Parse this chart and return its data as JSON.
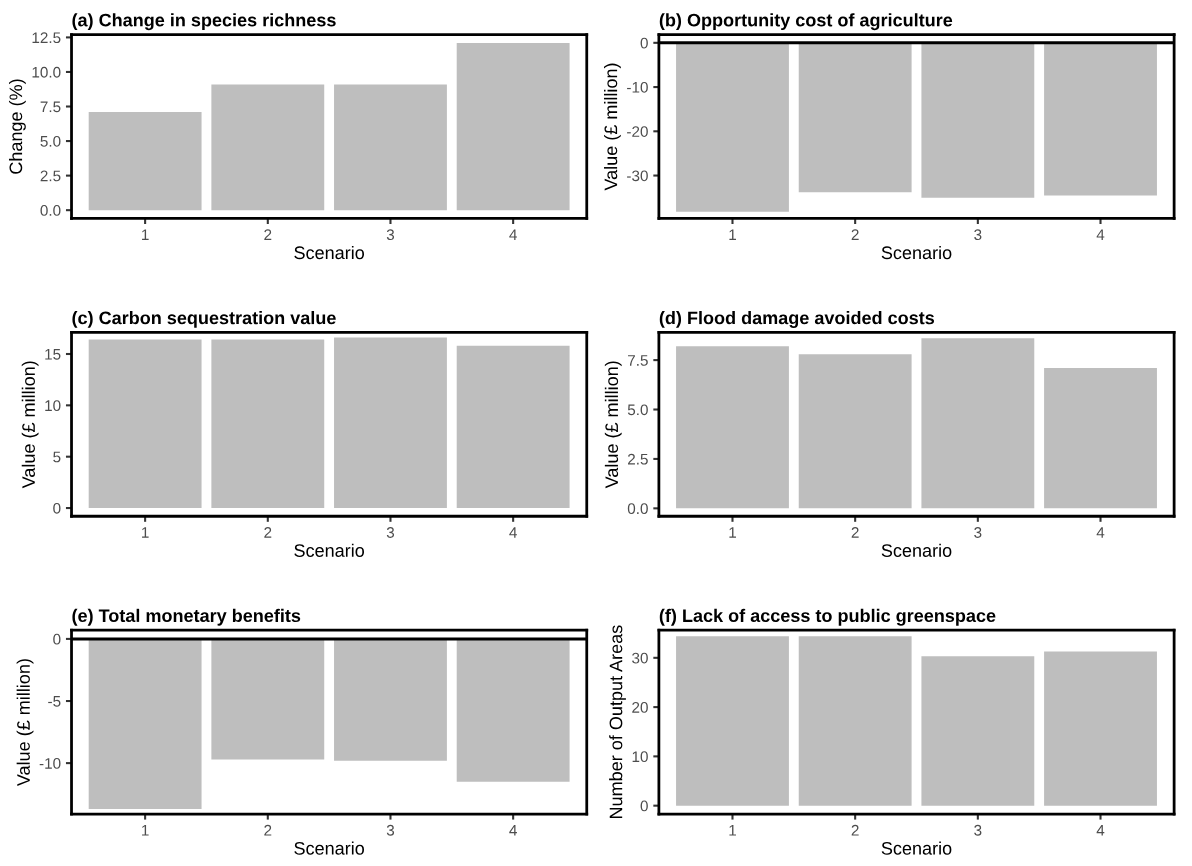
{
  "chart_data": [
    {
      "type": "bar",
      "title": "(a) Change in species richness",
      "xlabel": "Scenario",
      "ylabel": "Change (%)",
      "categories": [
        "1",
        "2",
        "3",
        "4"
      ],
      "values": [
        7.1,
        9.1,
        9.1,
        12.1
      ],
      "color": "#bebebe",
      "ylim": [
        -0.6,
        12.7
      ],
      "yticks": [
        {
          "value": 0,
          "label": "0.0"
        },
        2.5,
        {
          "value": 5,
          "label": "5.0"
        },
        7.5,
        {
          "value": 10,
          "label": "10.0"
        },
        12.5
      ],
      "grid": false
    },
    {
      "type": "bar",
      "title": "(b) Opportunity cost of agriculture",
      "xlabel": "Scenario",
      "ylabel": "Value (£ million)",
      "categories": [
        "1",
        "2",
        "3",
        "4"
      ],
      "values": [
        -38.2,
        -33.8,
        -35.0,
        -34.5
      ],
      "color": "#bebebe",
      "ylim": [
        -39.7,
        1.85
      ],
      "yticks": [
        -30,
        -20,
        -10,
        0
      ],
      "ref_lines": [
        {
          "axis": "y",
          "value": 0,
          "color": "#000000"
        }
      ],
      "grid": false
    },
    {
      "type": "bar",
      "title": "(c) Carbon sequestration value",
      "xlabel": "Scenario",
      "ylabel": "Value (£ million)",
      "categories": [
        "1",
        "2",
        "3",
        "4"
      ],
      "values": [
        16.4,
        16.4,
        16.6,
        15.8
      ],
      "color": "#bebebe",
      "ylim": [
        -0.8,
        17.1
      ],
      "yticks": [
        0,
        5,
        10,
        15
      ],
      "grid": false
    },
    {
      "type": "bar",
      "title": "(d) Flood damage avoided costs",
      "xlabel": "Scenario",
      "ylabel": "Value (£ million)",
      "categories": [
        "1",
        "2",
        "3",
        "4"
      ],
      "values": [
        8.2,
        7.8,
        8.6,
        7.1
      ],
      "color": "#bebebe",
      "ylim": [
        -0.4,
        8.9
      ],
      "yticks": [
        {
          "value": 0,
          "label": "0.0"
        },
        2.5,
        {
          "value": 5,
          "label": "5.0"
        },
        7.5
      ],
      "grid": false
    },
    {
      "type": "bar",
      "title": "(e) Total monetary benefits",
      "xlabel": "Scenario",
      "ylabel": "Value (£ million)",
      "categories": [
        "1",
        "2",
        "3",
        "4"
      ],
      "values": [
        -13.7,
        -9.7,
        -9.8,
        -11.5
      ],
      "color": "#bebebe",
      "ylim": [
        -14.1,
        0.7
      ],
      "yticks": [
        -10,
        -5,
        0
      ],
      "ref_lines": [
        {
          "axis": "y",
          "value": 0,
          "color": "#000000"
        }
      ],
      "grid": false
    },
    {
      "type": "bar",
      "title": "(f) Lack of access to public greenspace",
      "xlabel": "Scenario",
      "ylabel": "Number of Output Areas",
      "categories": [
        "1",
        "2",
        "3",
        "4"
      ],
      "values": [
        34.4,
        34.4,
        30.3,
        31.3
      ],
      "color": "#bebebe",
      "ylim": [
        -1.7,
        35.6
      ],
      "yticks": [
        0,
        10,
        20,
        30
      ],
      "grid": false
    }
  ]
}
